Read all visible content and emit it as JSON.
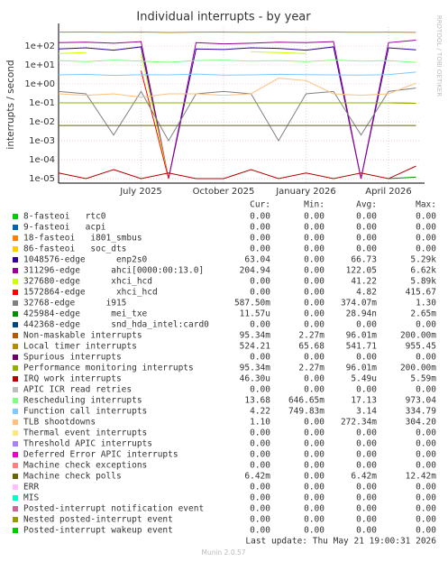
{
  "chart_data": {
    "type": "line",
    "title": "Individual interrupts - by year",
    "y_label": "interrupts / second",
    "side_label": "RRDTOOL / TOBI OETIKER",
    "log_scale": true,
    "grid": true,
    "categories": [
      null,
      null,
      null,
      "July 2025",
      null,
      null,
      "October 2025",
      null,
      null,
      "January 2026",
      null,
      null,
      "April 2026",
      null
    ],
    "ylim": [
      5.8e-06,
      1000
    ],
    "yticks": [
      {
        "value": 1e-05,
        "label": "1e-05"
      },
      {
        "value": 0.0001,
        "label": "1e-04"
      },
      {
        "value": 0.001,
        "label": "1e-03"
      },
      {
        "value": 0.01,
        "label": "1e-02"
      },
      {
        "value": 0.1,
        "label": "1e-01"
      },
      {
        "value": 1,
        "label": "1e+00"
      },
      {
        "value": 10,
        "label": "1e+01"
      },
      {
        "value": 100,
        "label": "1e+02"
      }
    ],
    "stat_headers": [
      "Cur:",
      "Min:",
      "Avg:",
      "Max:"
    ],
    "series": [
      {
        "name": "8-fasteoi   rtc0",
        "color": "#00cc00",
        "stats": [
          "0.00",
          "0.00",
          "0.00",
          "0.00"
        ],
        "values": [
          null,
          null,
          null,
          null,
          null,
          null,
          null,
          null,
          null,
          null,
          null,
          null,
          null,
          null
        ]
      },
      {
        "name": "9-fasteoi   acpi",
        "color": "#0066b3",
        "stats": [
          "0.00",
          "0.00",
          "0.00",
          "0.00"
        ],
        "values": [
          null,
          null,
          null,
          null,
          null,
          null,
          null,
          null,
          null,
          null,
          null,
          null,
          null,
          null
        ]
      },
      {
        "name": "18-fasteoi   i801_smbus",
        "color": "#ff8000",
        "stats": [
          "0.00",
          "0.00",
          "0.00",
          "0.00"
        ],
        "values": [
          null,
          null,
          null,
          null,
          null,
          null,
          null,
          null,
          null,
          null,
          null,
          null,
          null,
          null
        ]
      },
      {
        "name": "86-fasteoi   soc_dts",
        "color": "#ffcc00",
        "stats": [
          "0.00",
          "0.00",
          "0.00",
          "0.00"
        ],
        "values": [
          null,
          null,
          null,
          null,
          null,
          null,
          null,
          null,
          null,
          null,
          null,
          null,
          null,
          null
        ]
      },
      {
        "name": "1048576-edge      enp2s0",
        "color": "#330099",
        "stats": [
          "63.04",
          "0.00",
          "66.73",
          "5.29k"
        ],
        "values": [
          70,
          80,
          60,
          90,
          1e-05,
          70,
          65,
          80,
          75,
          60,
          90,
          1e-05,
          80,
          63
        ]
      },
      {
        "name": "311296-edge      ahci[0000:00:13.0]",
        "color": "#990099",
        "stats": [
          "204.94",
          "0.00",
          "122.05",
          "6.62k"
        ],
        "values": [
          150,
          160,
          140,
          170,
          1e-05,
          150,
          130,
          140,
          160,
          150,
          170,
          1e-05,
          150,
          205
        ]
      },
      {
        "name": "327680-edge      xhci_hcd",
        "color": "#ccff00",
        "stats": [
          "0.00",
          "0.00",
          "41.22",
          "5.89k"
        ],
        "values": [
          40,
          45,
          null,
          40,
          1e-05,
          null,
          null,
          50,
          45,
          40,
          null,
          null,
          45,
          null
        ]
      },
      {
        "name": "1572864-edge      xhci_hcd",
        "color": "#ff0000",
        "stats": [
          "0.00",
          "0.00",
          "4.82",
          "415.67"
        ],
        "values": [
          null,
          3,
          null,
          5,
          1e-05,
          null,
          null,
          null,
          4,
          null,
          null,
          1e-05,
          null,
          null
        ]
      },
      {
        "name": "32768-edge      i915",
        "color": "#808080",
        "stats": [
          "587.50m",
          "0.00",
          "374.07m",
          "1.30"
        ],
        "values": [
          0.4,
          0.3,
          0.002,
          0.4,
          0.001,
          0.3,
          0.4,
          0.3,
          0.001,
          0.3,
          0.4,
          0.002,
          0.4,
          0.6
        ]
      },
      {
        "name": "425984-edge      mei_txe",
        "color": "#008f00",
        "stats": [
          "11.57u",
          "0.00",
          "28.94n",
          "2.65m"
        ],
        "values": [
          1e-05,
          null,
          1e-05,
          null,
          null,
          1e-05,
          null,
          1e-05,
          null,
          null,
          1e-05,
          null,
          1e-05,
          1.2e-05
        ]
      },
      {
        "name": "442368-edge      snd_hda_intel:card0",
        "color": "#00487d",
        "stats": [
          "0.00",
          "0.00",
          "0.00",
          "0.00"
        ],
        "values": [
          null,
          null,
          null,
          null,
          null,
          null,
          null,
          null,
          null,
          null,
          null,
          null,
          null,
          null
        ]
      },
      {
        "name": "Non-maskable interrupts",
        "color": "#b35a00",
        "stats": [
          "95.34m",
          "2.27m",
          "96.01m",
          "200.00m"
        ],
        "values": [
          0.1,
          0.1,
          0.1,
          0.1,
          0.1,
          0.1,
          0.1,
          0.1,
          0.1,
          0.1,
          0.1,
          0.1,
          0.1,
          0.095
        ]
      },
      {
        "name": "Local timer interrupts",
        "color": "#b38f00",
        "stats": [
          "524.21",
          "65.68",
          "541.71",
          "955.45"
        ],
        "values": [
          540,
          545,
          530,
          550,
          520,
          540,
          545,
          535,
          550,
          540,
          545,
          530,
          540,
          524
        ]
      },
      {
        "name": "Spurious interrupts",
        "color": "#6b006b",
        "stats": [
          "0.00",
          "0.00",
          "0.00",
          "0.00"
        ],
        "values": [
          null,
          null,
          null,
          null,
          null,
          null,
          null,
          null,
          null,
          null,
          null,
          null,
          null,
          null
        ]
      },
      {
        "name": "Performance monitoring interrupts",
        "color": "#8fb300",
        "stats": [
          "95.34m",
          "2.27m",
          "96.01m",
          "200.00m"
        ],
        "values": [
          0.1,
          0.1,
          0.1,
          0.1,
          0.1,
          0.1,
          0.1,
          0.1,
          0.1,
          0.1,
          0.1,
          0.1,
          0.1,
          0.095
        ]
      },
      {
        "name": "IRQ work interrupts",
        "color": "#b30000",
        "stats": [
          "46.30u",
          "0.00",
          "5.49u",
          "5.59m"
        ],
        "values": [
          2e-05,
          1e-05,
          3e-05,
          1e-05,
          2e-05,
          1e-05,
          1e-05,
          3e-05,
          1e-05,
          2e-05,
          1e-05,
          2e-05,
          1e-05,
          4.6e-05
        ]
      },
      {
        "name": "APIC ICR read retries",
        "color": "#bebebe",
        "stats": [
          "0.00",
          "0.00",
          "0.00",
          "0.00"
        ],
        "values": [
          null,
          null,
          null,
          null,
          null,
          null,
          null,
          null,
          null,
          null,
          null,
          null,
          null,
          null
        ]
      },
      {
        "name": "Rescheduling interrupts",
        "color": "#80ff80",
        "stats": [
          "13.68",
          "646.65m",
          "17.13",
          "973.04"
        ],
        "values": [
          17,
          15,
          18,
          16,
          14,
          17,
          18,
          16,
          17,
          15,
          18,
          16,
          17,
          13.7
        ]
      },
      {
        "name": "Function call interrupts",
        "color": "#80c9ff",
        "stats": [
          "4.22",
          "749.83m",
          "3.14",
          "334.79"
        ],
        "values": [
          3,
          3.2,
          2.8,
          3.1,
          3,
          3.3,
          2.9,
          3,
          3.2,
          3.1,
          3,
          2.9,
          3.1,
          4.2
        ]
      },
      {
        "name": "TLB shootdowns",
        "color": "#ffc080",
        "stats": [
          "1.10",
          "0.00",
          "272.34m",
          "304.20"
        ],
        "values": [
          0.3,
          0.25,
          0.3,
          0.2,
          0.3,
          0.3,
          0.25,
          0.3,
          2,
          1.5,
          0.3,
          0.25,
          0.3,
          1.1
        ]
      },
      {
        "name": "Thermal event interrupts",
        "color": "#ffe680",
        "stats": [
          "0.00",
          "0.00",
          "0.00",
          "0.00"
        ],
        "values": [
          null,
          null,
          null,
          null,
          null,
          null,
          null,
          null,
          null,
          null,
          null,
          null,
          null,
          null
        ]
      },
      {
        "name": "Threshold APIC interrupts",
        "color": "#aa80ff",
        "stats": [
          "0.00",
          "0.00",
          "0.00",
          "0.00"
        ],
        "values": [
          null,
          null,
          null,
          null,
          null,
          null,
          null,
          null,
          null,
          null,
          null,
          null,
          null,
          null
        ]
      },
      {
        "name": "Deferred Error APIC interrupts",
        "color": "#ee00cc",
        "stats": [
          "0.00",
          "0.00",
          "0.00",
          "0.00"
        ],
        "values": [
          null,
          null,
          null,
          null,
          null,
          null,
          null,
          null,
          null,
          null,
          null,
          null,
          null,
          null
        ]
      },
      {
        "name": "Machine check exceptions",
        "color": "#ff8080",
        "stats": [
          "0.00",
          "0.00",
          "0.00",
          "0.00"
        ],
        "values": [
          null,
          null,
          null,
          null,
          null,
          null,
          null,
          null,
          null,
          null,
          null,
          null,
          null,
          null
        ]
      },
      {
        "name": "Machine check polls",
        "color": "#666600",
        "stats": [
          "6.42m",
          "0.00",
          "6.42m",
          "12.42m"
        ],
        "values": [
          0.0064,
          0.0064,
          0.0064,
          0.0064,
          0.0064,
          0.0064,
          0.0064,
          0.0064,
          0.0064,
          0.0064,
          0.0064,
          0.0064,
          0.0064,
          0.0064
        ]
      },
      {
        "name": "ERR",
        "color": "#ffbfff",
        "stats": [
          "0.00",
          "0.00",
          "0.00",
          "0.00"
        ],
        "values": [
          null,
          null,
          null,
          null,
          null,
          null,
          null,
          null,
          null,
          null,
          null,
          null,
          null,
          null
        ]
      },
      {
        "name": "MIS",
        "color": "#00ffcc",
        "stats": [
          "0.00",
          "0.00",
          "0.00",
          "0.00"
        ],
        "values": [
          null,
          null,
          null,
          null,
          null,
          null,
          null,
          null,
          null,
          null,
          null,
          null,
          null,
          null
        ]
      },
      {
        "name": "Posted-interrupt notification event",
        "color": "#cc6699",
        "stats": [
          "0.00",
          "0.00",
          "0.00",
          "0.00"
        ],
        "values": [
          null,
          null,
          null,
          null,
          null,
          null,
          null,
          null,
          null,
          null,
          null,
          null,
          null,
          null
        ]
      },
      {
        "name": "Nested posted-interrupt event",
        "color": "#999900",
        "stats": [
          "0.00",
          "0.00",
          "0.00",
          "0.00"
        ],
        "values": [
          null,
          null,
          null,
          null,
          null,
          null,
          null,
          null,
          null,
          null,
          null,
          null,
          null,
          null
        ]
      },
      {
        "name": "Posted-interrupt wakeup event",
        "color": "#00cc00",
        "stats": [
          "0.00",
          "0.00",
          "0.00",
          "0.00"
        ],
        "values": [
          null,
          null,
          null,
          null,
          null,
          null,
          null,
          null,
          null,
          null,
          null,
          null,
          null,
          null
        ]
      }
    ],
    "last_update": "Last update: Thu May 21 19:00:31 2026",
    "version": "Munin 2.0.57"
  }
}
